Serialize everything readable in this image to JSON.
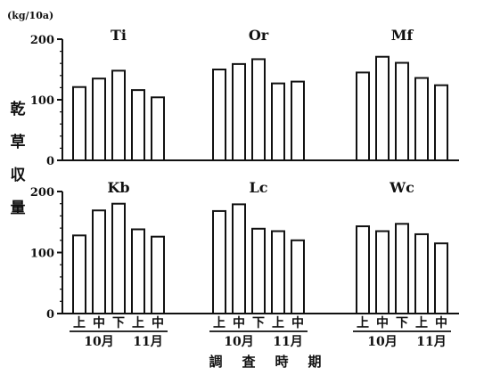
{
  "chart_data": {
    "type": "bar",
    "unit_label": "(kg/10a)",
    "ylabel": "乾 草 収 量",
    "xlabel": "調 査 時 期",
    "ylim": [
      0,
      200
    ],
    "yticks": [
      0,
      100,
      200
    ],
    "categories": [
      "上",
      "中",
      "下",
      "上",
      "中"
    ],
    "month_groups": [
      {
        "label": "10月",
        "categories": [
          "上",
          "中",
          "下"
        ]
      },
      {
        "label": "11月",
        "categories": [
          "上",
          "中"
        ]
      }
    ],
    "grid": false,
    "legend": "none",
    "panels": [
      {
        "row": 0,
        "series": [
          {
            "name": "Ti",
            "values": [
              121,
              135,
              148,
              116,
              104
            ]
          },
          {
            "name": "Or",
            "values": [
              150,
              159,
              167,
              127,
              130
            ]
          },
          {
            "name": "Mf",
            "values": [
              145,
              171,
              161,
              136,
              124
            ]
          }
        ]
      },
      {
        "row": 1,
        "series": [
          {
            "name": "Kb",
            "values": [
              128,
              169,
              180,
              138,
              126
            ]
          },
          {
            "name": "Lc",
            "values": [
              168,
              179,
              139,
              135,
              120
            ]
          },
          {
            "name": "Wc",
            "values": [
              143,
              135,
              147,
              130,
              115
            ]
          }
        ]
      }
    ]
  },
  "colors": {
    "ink": "#111111",
    "bar_fill": "#ffffff",
    "background": "#ffffff"
  }
}
